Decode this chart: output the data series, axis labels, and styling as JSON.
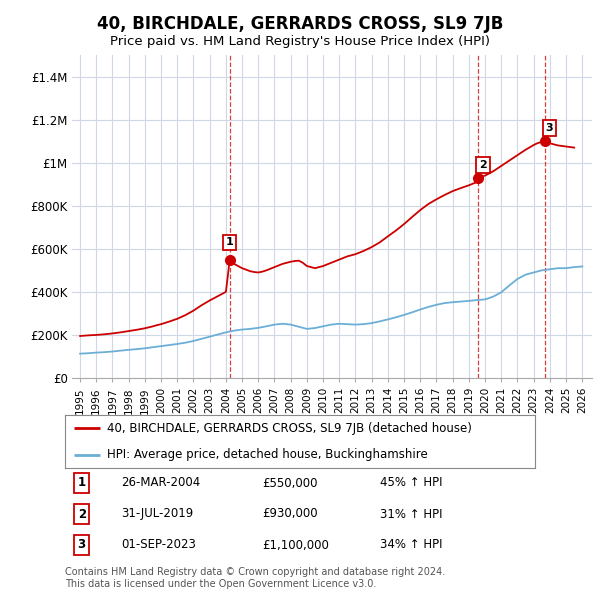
{
  "title": "40, BIRCHDALE, GERRARDS CROSS, SL9 7JB",
  "subtitle": "Price paid vs. HM Land Registry's House Price Index (HPI)",
  "legend_line1": "40, BIRCHDALE, GERRARDS CROSS, SL9 7JB (detached house)",
  "legend_line2": "HPI: Average price, detached house, Buckinghamshire",
  "footnote": "Contains HM Land Registry data © Crown copyright and database right 2024.\nThis data is licensed under the Open Government Licence v3.0.",
  "table": [
    {
      "num": "1",
      "date": "26-MAR-2004",
      "price": "£550,000",
      "change": "45% ↑ HPI"
    },
    {
      "num": "2",
      "date": "31-JUL-2019",
      "price": "£930,000",
      "change": "31% ↑ HPI"
    },
    {
      "num": "3",
      "date": "01-SEP-2023",
      "price": "£1,100,000",
      "change": "34% ↑ HPI"
    }
  ],
  "sale_points": [
    {
      "year": 2004.24,
      "value": 550000,
      "label": "1"
    },
    {
      "year": 2019.58,
      "value": 930000,
      "label": "2"
    },
    {
      "year": 2023.67,
      "value": 1100000,
      "label": "3"
    }
  ],
  "hpi_color": "#6baed6",
  "price_color": "#cc0000",
  "sale_marker_color": "#cc0000",
  "background_color": "#ffffff",
  "grid_color": "#d0d8e8",
  "ylim": [
    0,
    1500000
  ],
  "xlim_start": 1994.5,
  "xlim_end": 2026.6,
  "yticks": [
    0,
    200000,
    400000,
    600000,
    800000,
    1000000,
    1200000,
    1400000
  ],
  "ytick_labels": [
    "£0",
    "£200K",
    "£400K",
    "£600K",
    "£800K",
    "£1M",
    "£1.2M",
    "£1.4M"
  ],
  "xtick_years": [
    1995,
    1996,
    1997,
    1998,
    1999,
    2000,
    2001,
    2002,
    2003,
    2004,
    2005,
    2006,
    2007,
    2008,
    2009,
    2010,
    2011,
    2012,
    2013,
    2014,
    2015,
    2016,
    2017,
    2018,
    2019,
    2020,
    2021,
    2022,
    2023,
    2024,
    2025,
    2026
  ],
  "hpi_data": [
    [
      1995,
      113000
    ],
    [
      1995.25,
      114000
    ],
    [
      1995.5,
      115000
    ],
    [
      1995.75,
      116500
    ],
    [
      1996,
      118000
    ],
    [
      1996.25,
      119000
    ],
    [
      1996.5,
      120000
    ],
    [
      1996.75,
      121500
    ],
    [
      1997,
      123000
    ],
    [
      1997.25,
      125000
    ],
    [
      1997.5,
      127000
    ],
    [
      1997.75,
      129000
    ],
    [
      1998,
      131000
    ],
    [
      1998.25,
      132500
    ],
    [
      1998.5,
      134000
    ],
    [
      1998.75,
      136000
    ],
    [
      1999,
      138000
    ],
    [
      1999.25,
      140500
    ],
    [
      1999.5,
      143000
    ],
    [
      1999.75,
      145500
    ],
    [
      2000,
      148000
    ],
    [
      2000.25,
      150500
    ],
    [
      2000.5,
      153000
    ],
    [
      2000.75,
      155500
    ],
    [
      2001,
      158000
    ],
    [
      2001.25,
      161000
    ],
    [
      2001.5,
      164000
    ],
    [
      2001.75,
      168000
    ],
    [
      2002,
      172000
    ],
    [
      2002.25,
      177000
    ],
    [
      2002.5,
      182000
    ],
    [
      2002.75,
      187000
    ],
    [
      2003,
      192000
    ],
    [
      2003.25,
      197000
    ],
    [
      2003.5,
      202000
    ],
    [
      2003.75,
      207000
    ],
    [
      2004,
      212000
    ],
    [
      2004.25,
      216000
    ],
    [
      2004.5,
      220000
    ],
    [
      2004.75,
      222500
    ],
    [
      2005,
      225000
    ],
    [
      2005.25,
      226500
    ],
    [
      2005.5,
      228000
    ],
    [
      2005.75,
      230500
    ],
    [
      2006,
      233000
    ],
    [
      2006.25,
      236500
    ],
    [
      2006.5,
      240000
    ],
    [
      2006.75,
      244000
    ],
    [
      2007,
      248000
    ],
    [
      2007.25,
      250000
    ],
    [
      2007.5,
      252000
    ],
    [
      2007.75,
      250000
    ],
    [
      2008,
      248000
    ],
    [
      2008.25,
      243000
    ],
    [
      2008.5,
      238000
    ],
    [
      2008.75,
      233000
    ],
    [
      2009,
      228000
    ],
    [
      2009.25,
      230000
    ],
    [
      2009.5,
      232000
    ],
    [
      2009.75,
      236000
    ],
    [
      2010,
      240000
    ],
    [
      2010.25,
      244000
    ],
    [
      2010.5,
      248000
    ],
    [
      2010.75,
      250000
    ],
    [
      2011,
      252000
    ],
    [
      2011.25,
      251000
    ],
    [
      2011.5,
      250000
    ],
    [
      2011.75,
      249000
    ],
    [
      2012,
      248000
    ],
    [
      2012.25,
      249000
    ],
    [
      2012.5,
      250000
    ],
    [
      2012.75,
      252500
    ],
    [
      2013,
      255000
    ],
    [
      2013.25,
      259000
    ],
    [
      2013.5,
      263000
    ],
    [
      2013.75,
      267500
    ],
    [
      2014,
      272000
    ],
    [
      2014.25,
      277000
    ],
    [
      2014.5,
      282000
    ],
    [
      2014.75,
      287500
    ],
    [
      2015,
      293000
    ],
    [
      2015.25,
      299000
    ],
    [
      2015.5,
      305000
    ],
    [
      2015.75,
      311500
    ],
    [
      2016,
      318000
    ],
    [
      2016.25,
      324000
    ],
    [
      2016.5,
      330000
    ],
    [
      2016.75,
      335000
    ],
    [
      2017,
      340000
    ],
    [
      2017.25,
      344000
    ],
    [
      2017.5,
      348000
    ],
    [
      2017.75,
      350000
    ],
    [
      2018,
      352000
    ],
    [
      2018.25,
      353500
    ],
    [
      2018.5,
      355000
    ],
    [
      2018.75,
      356500
    ],
    [
      2019,
      358000
    ],
    [
      2019.25,
      360000
    ],
    [
      2019.5,
      362000
    ],
    [
      2019.75,
      363500
    ],
    [
      2020,
      365000
    ],
    [
      2020.25,
      371500
    ],
    [
      2020.5,
      378000
    ],
    [
      2020.75,
      388000
    ],
    [
      2021,
      398000
    ],
    [
      2021.25,
      414000
    ],
    [
      2021.5,
      430000
    ],
    [
      2021.75,
      445000
    ],
    [
      2022,
      460000
    ],
    [
      2022.25,
      470000
    ],
    [
      2022.5,
      480000
    ],
    [
      2022.75,
      485000
    ],
    [
      2023,
      490000
    ],
    [
      2023.25,
      495000
    ],
    [
      2023.5,
      500000
    ],
    [
      2023.75,
      502500
    ],
    [
      2024,
      505000
    ],
    [
      2024.25,
      507500
    ],
    [
      2024.5,
      510000
    ],
    [
      2024.75,
      510000
    ],
    [
      2025,
      510000
    ],
    [
      2025.25,
      512500
    ],
    [
      2025.5,
      515000
    ],
    [
      2025.75,
      516500
    ],
    [
      2026,
      518000
    ]
  ],
  "price_data": [
    [
      1995,
      195000
    ],
    [
      1995.25,
      196500
    ],
    [
      1995.5,
      198000
    ],
    [
      1995.75,
      199000
    ],
    [
      1996,
      200000
    ],
    [
      1996.25,
      201500
    ],
    [
      1996.5,
      203000
    ],
    [
      1996.75,
      205000
    ],
    [
      1997,
      207000
    ],
    [
      1997.25,
      209500
    ],
    [
      1997.5,
      212000
    ],
    [
      1997.75,
      215000
    ],
    [
      1998,
      218000
    ],
    [
      1998.25,
      221000
    ],
    [
      1998.5,
      224000
    ],
    [
      1998.75,
      227500
    ],
    [
      1999,
      231000
    ],
    [
      1999.25,
      235500
    ],
    [
      1999.5,
      240000
    ],
    [
      1999.75,
      245500
    ],
    [
      2000,
      250000
    ],
    [
      2000.25,
      256000
    ],
    [
      2000.5,
      262000
    ],
    [
      2000.75,
      268500
    ],
    [
      2001,
      275000
    ],
    [
      2001.25,
      283500
    ],
    [
      2001.5,
      292000
    ],
    [
      2001.75,
      302500
    ],
    [
      2002,
      313000
    ],
    [
      2002.25,
      325500
    ],
    [
      2002.5,
      338000
    ],
    [
      2002.75,
      349000
    ],
    [
      2003,
      360000
    ],
    [
      2003.25,
      370000
    ],
    [
      2003.5,
      380000
    ],
    [
      2003.75,
      390000
    ],
    [
      2004.0,
      400000
    ],
    [
      2004.24,
      550000
    ],
    [
      2004.5,
      530000
    ],
    [
      2004.75,
      520000
    ],
    [
      2005,
      510000
    ],
    [
      2005.25,
      503000
    ],
    [
      2005.5,
      496000
    ],
    [
      2005.75,
      492000
    ],
    [
      2006,
      490000
    ],
    [
      2006.25,
      494000
    ],
    [
      2006.5,
      500000
    ],
    [
      2006.75,
      507500
    ],
    [
      2007,
      515000
    ],
    [
      2007.25,
      522500
    ],
    [
      2007.5,
      530000
    ],
    [
      2007.75,
      535000
    ],
    [
      2008,
      540000
    ],
    [
      2008.25,
      543000
    ],
    [
      2008.5,
      545000
    ],
    [
      2008.75,
      535000
    ],
    [
      2009,
      520000
    ],
    [
      2009.25,
      515000
    ],
    [
      2009.5,
      510000
    ],
    [
      2009.75,
      515000
    ],
    [
      2010,
      520000
    ],
    [
      2010.25,
      527500
    ],
    [
      2010.5,
      535000
    ],
    [
      2010.75,
      542500
    ],
    [
      2011,
      550000
    ],
    [
      2011.25,
      557500
    ],
    [
      2011.5,
      565000
    ],
    [
      2011.75,
      570000
    ],
    [
      2012,
      575000
    ],
    [
      2012.25,
      582500
    ],
    [
      2012.5,
      590000
    ],
    [
      2012.75,
      599000
    ],
    [
      2013,
      608000
    ],
    [
      2013.25,
      619000
    ],
    [
      2013.5,
      630000
    ],
    [
      2013.75,
      644000
    ],
    [
      2014,
      658000
    ],
    [
      2014.25,
      671500
    ],
    [
      2014.5,
      685000
    ],
    [
      2014.75,
      700000
    ],
    [
      2015,
      715000
    ],
    [
      2015.25,
      731500
    ],
    [
      2015.5,
      748000
    ],
    [
      2015.75,
      764000
    ],
    [
      2016,
      780000
    ],
    [
      2016.25,
      794000
    ],
    [
      2016.5,
      808000
    ],
    [
      2016.75,
      819000
    ],
    [
      2017,
      830000
    ],
    [
      2017.25,
      840000
    ],
    [
      2017.5,
      850000
    ],
    [
      2017.75,
      859000
    ],
    [
      2018,
      868000
    ],
    [
      2018.25,
      875000
    ],
    [
      2018.5,
      882000
    ],
    [
      2018.75,
      888500
    ],
    [
      2019,
      895000
    ],
    [
      2019.25,
      902500
    ],
    [
      2019.5,
      910000
    ],
    [
      2019.58,
      930000
    ],
    [
      2019.75,
      935000
    ],
    [
      2020,
      940000
    ],
    [
      2020.25,
      950000
    ],
    [
      2020.5,
      960000
    ],
    [
      2020.75,
      972500
    ],
    [
      2021,
      985000
    ],
    [
      2021.25,
      997500
    ],
    [
      2021.5,
      1010000
    ],
    [
      2021.75,
      1022500
    ],
    [
      2022,
      1035000
    ],
    [
      2022.25,
      1047500
    ],
    [
      2022.5,
      1060000
    ],
    [
      2022.75,
      1071000
    ],
    [
      2023,
      1082000
    ],
    [
      2023.25,
      1091000
    ],
    [
      2023.67,
      1100000
    ],
    [
      2024,
      1090000
    ],
    [
      2024.25,
      1085000
    ],
    [
      2024.5,
      1080000
    ],
    [
      2024.75,
      1077500
    ],
    [
      2025,
      1075000
    ],
    [
      2025.25,
      1072500
    ],
    [
      2025.5,
      1070000
    ]
  ]
}
